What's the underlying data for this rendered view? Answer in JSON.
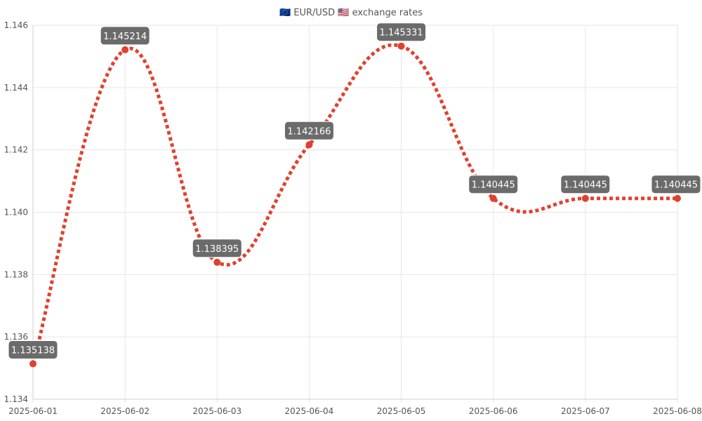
{
  "chart_data": {
    "type": "line",
    "title": "🇪🇺 EUR/USD 🇺🇸 exchange rates",
    "xlabel": "",
    "ylabel": "",
    "categories": [
      "2025-06-01",
      "2025-06-02",
      "2025-06-03",
      "2025-06-04",
      "2025-06-05",
      "2025-06-06",
      "2025-06-07",
      "2025-06-08"
    ],
    "series": [
      {
        "values": [
          1.135138,
          1.145214,
          1.138395,
          1.142166,
          1.145331,
          1.140445,
          1.140445,
          1.140445
        ],
        "data_labels": [
          "1.135138",
          "1.145214",
          "1.138395",
          "1.142166",
          "1.145331",
          "1.140445",
          "1.140445",
          "1.140445"
        ],
        "color": "#e0412d"
      }
    ],
    "ylim": [
      1.134,
      1.146
    ],
    "yticks": [
      "1.134",
      "1.136",
      "1.138",
      "1.140",
      "1.142",
      "1.144",
      "1.146"
    ],
    "line_style": "dotted",
    "smooth": true,
    "grid": true,
    "legend": "none"
  }
}
